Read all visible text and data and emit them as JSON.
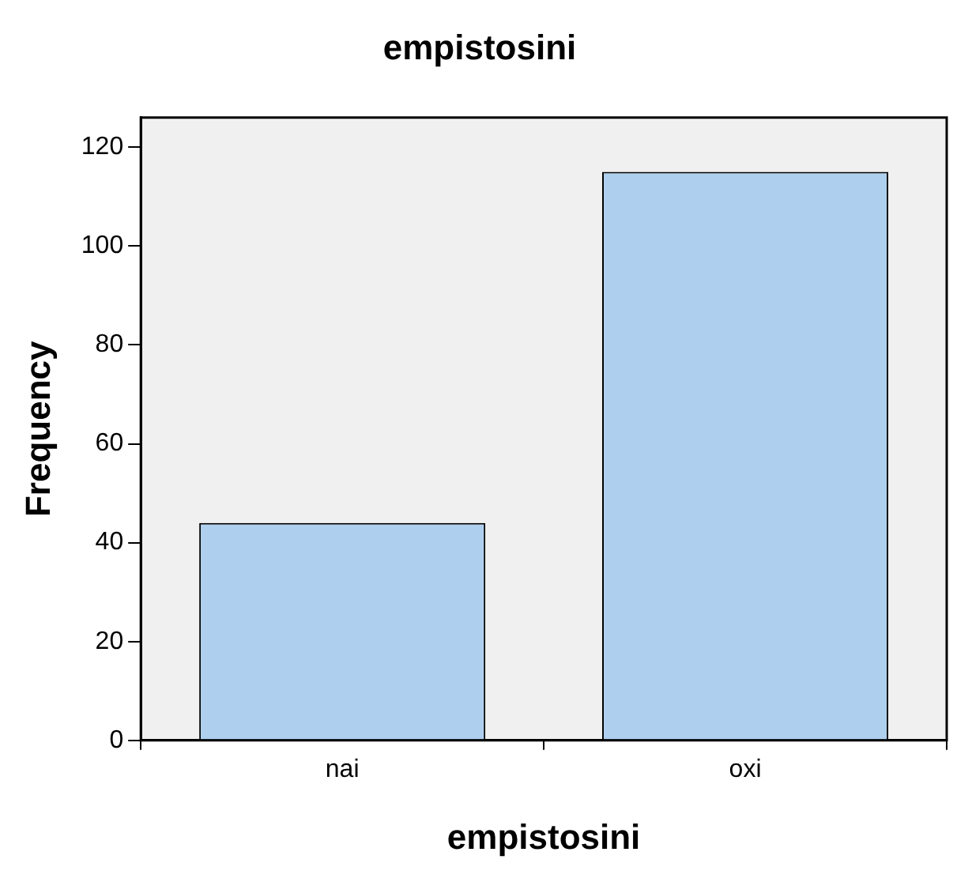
{
  "chart_data": {
    "type": "bar",
    "title": "empistosini",
    "xlabel": "empistosini",
    "ylabel": "Frequency",
    "categories": [
      "nai",
      "oxi"
    ],
    "values": [
      44,
      115
    ],
    "color": "#aed0ee",
    "ylim": [
      0,
      126
    ],
    "yticks": [
      0,
      20,
      40,
      60,
      80,
      100,
      120
    ],
    "grid": false,
    "legend": false
  }
}
